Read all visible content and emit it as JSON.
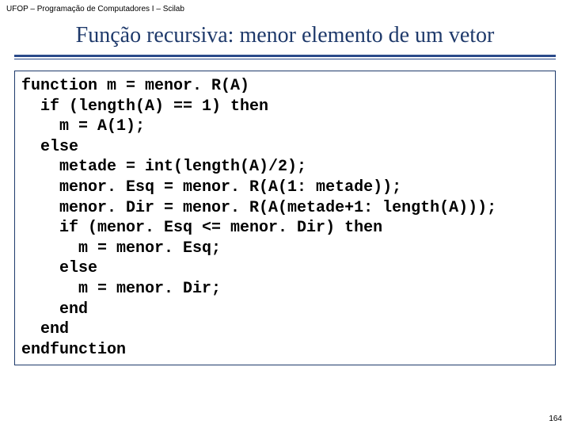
{
  "header": "UFOP – Programação de Computadores I – Scilab",
  "title": "Função recursiva: menor elemento de um vetor",
  "code": {
    "l1": "function m = menor. R(A)",
    "l2": "  if (length(A) == 1) then",
    "l3": "    m = A(1);",
    "l4": "  else",
    "l5": "    metade = int(length(A)/2);",
    "l6": "    menor. Esq = menor. R(A(1: metade));",
    "l7": "    menor. Dir = menor. R(A(metade+1: length(A)));",
    "l8": "    if (menor. Esq <= menor. Dir) then",
    "l9": "      m = menor. Esq;",
    "l10": "    else",
    "l11": "      m = menor. Dir;",
    "l12": "    end",
    "l13": "  end",
    "l14": "endfunction"
  },
  "page_number": "164",
  "colors": {
    "title_color": "#1f3a6b",
    "divider_color": "#2a4a8a",
    "code_border": "#1f3a6b",
    "background": "#ffffff"
  }
}
